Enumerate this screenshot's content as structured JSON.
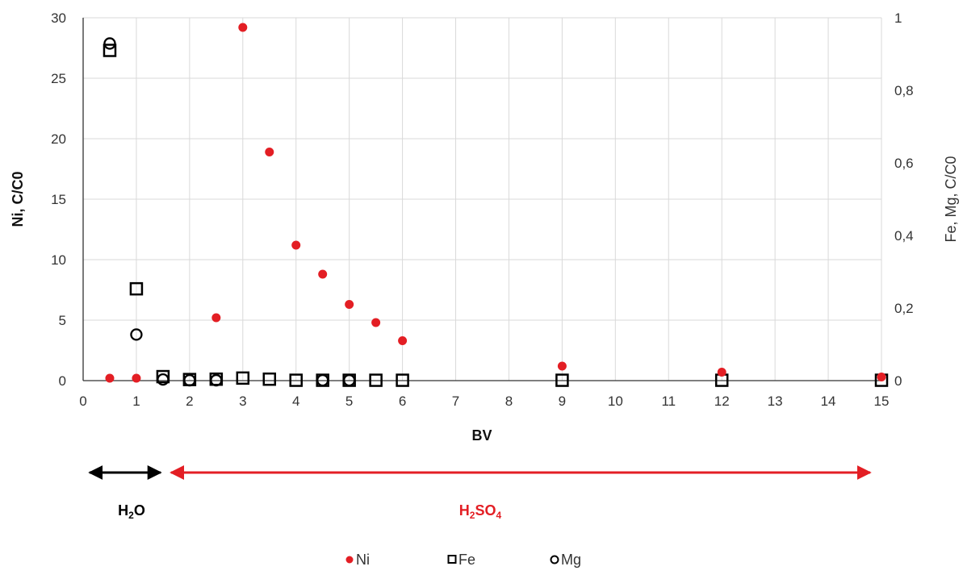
{
  "chart_data": {
    "type": "scatter",
    "xlabel": "BV",
    "ylabel_left": "Ni, C/C0",
    "ylabel_right": "Fe, Mg, C/C0",
    "xlim": [
      0,
      15
    ],
    "ylim_left": [
      0,
      30
    ],
    "ylim_right": [
      0,
      1
    ],
    "x_ticks": [
      "0",
      "1",
      "2",
      "3",
      "4",
      "5",
      "6",
      "7",
      "8",
      "9",
      "10",
      "11",
      "12",
      "13",
      "14",
      "15"
    ],
    "y_left_ticks": [
      "0",
      "5",
      "10",
      "15",
      "20",
      "25",
      "30"
    ],
    "y_right_ticks": [
      "0",
      "0,2",
      "0,4",
      "0,6",
      "0,8",
      "1"
    ],
    "grid": true,
    "legend_position": "bottom",
    "series": [
      {
        "name": "Ni",
        "axis": "left",
        "marker": "filled-circle",
        "color": "#e31e24",
        "points": [
          [
            0.5,
            0.2
          ],
          [
            1,
            0.2
          ],
          [
            2.5,
            5.2
          ],
          [
            3,
            29.2
          ],
          [
            3.5,
            18.9
          ],
          [
            4,
            11.2
          ],
          [
            4.5,
            8.8
          ],
          [
            5,
            6.3
          ],
          [
            5.5,
            4.8
          ],
          [
            6,
            3.3
          ],
          [
            9,
            1.2
          ],
          [
            12,
            0.7
          ],
          [
            15,
            0.3
          ]
        ]
      },
      {
        "name": "Fe",
        "axis": "right",
        "marker": "open-square",
        "color": "#000000",
        "points": [
          [
            0.5,
            0.91
          ],
          [
            1,
            0.253
          ],
          [
            1.5,
            0.011
          ],
          [
            2,
            0.003
          ],
          [
            2.5,
            0.004
          ],
          [
            3,
            0.007
          ],
          [
            3.5,
            0.004
          ],
          [
            4,
            0.001
          ],
          [
            4.5,
            0.001
          ],
          [
            5,
            0.001
          ],
          [
            5.5,
            0.001
          ],
          [
            6,
            0.001
          ],
          [
            9,
            0.001
          ],
          [
            12,
            0.001
          ],
          [
            15,
            0.001
          ]
        ]
      },
      {
        "name": "Mg",
        "axis": "right",
        "marker": "open-circle",
        "color": "#000000",
        "points": [
          [
            0.5,
            0.929
          ],
          [
            1,
            0.127
          ],
          [
            1.5,
            0.003
          ],
          [
            2,
            0.001
          ],
          [
            2.5,
            0.001
          ],
          [
            4.5,
            0.001
          ],
          [
            5,
            0.001
          ]
        ]
      }
    ],
    "annotations": [
      {
        "parts": [
          "H",
          "2",
          "O"
        ],
        "from": 0,
        "to": 1.5,
        "color": "#000000"
      },
      {
        "parts": [
          "H",
          "2",
          "SO",
          "4"
        ],
        "from": 1.5,
        "to": 15,
        "color": "#e31e24"
      }
    ]
  }
}
